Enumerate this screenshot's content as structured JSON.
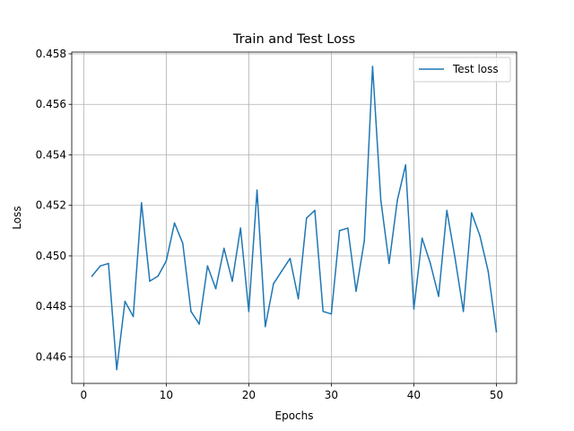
{
  "chart_data": {
    "type": "line",
    "title": "Train and Test Loss",
    "xlabel": "Epochs",
    "ylabel": "Loss",
    "xlim": [
      -1.45,
      52.45
    ],
    "ylim": [
      0.44495,
      0.45807
    ],
    "xticks": [
      0,
      10,
      20,
      30,
      40,
      50
    ],
    "xtick_labels": [
      "0",
      "10",
      "20",
      "30",
      "40",
      "50"
    ],
    "yticks": [
      0.446,
      0.448,
      0.45,
      0.452,
      0.454,
      0.456,
      0.458
    ],
    "ytick_labels": [
      "0.446",
      "0.448",
      "0.450",
      "0.452",
      "0.454",
      "0.456",
      "0.458"
    ],
    "grid": true,
    "legend_position": "top-right",
    "series": [
      {
        "name": "Test loss",
        "color": "#1f77b4",
        "x": [
          1,
          2,
          3,
          4,
          5,
          6,
          7,
          8,
          9,
          10,
          11,
          12,
          13,
          14,
          15,
          16,
          17,
          18,
          19,
          20,
          21,
          22,
          23,
          24,
          25,
          26,
          27,
          28,
          29,
          30,
          31,
          32,
          33,
          34,
          35,
          36,
          37,
          38,
          39,
          40,
          41,
          42,
          43,
          44,
          45,
          46,
          47,
          48,
          49,
          50
        ],
        "values": [
          0.4492,
          0.4496,
          0.4497,
          0.4455,
          0.4482,
          0.4476,
          0.4521,
          0.449,
          0.4492,
          0.4498,
          0.4513,
          0.4505,
          0.4478,
          0.4473,
          0.4496,
          0.4487,
          0.4503,
          0.449,
          0.4511,
          0.4478,
          0.4526,
          0.4472,
          0.4489,
          0.4494,
          0.4499,
          0.4483,
          0.4515,
          0.4518,
          0.4478,
          0.4477,
          0.451,
          0.4511,
          0.4486,
          0.4506,
          0.4575,
          0.4522,
          0.4497,
          0.4522,
          0.4536,
          0.4479,
          0.4507,
          0.4497,
          0.4484,
          0.4518,
          0.4499,
          0.4478,
          0.4517,
          0.4508,
          0.4494,
          0.447
        ]
      }
    ]
  }
}
